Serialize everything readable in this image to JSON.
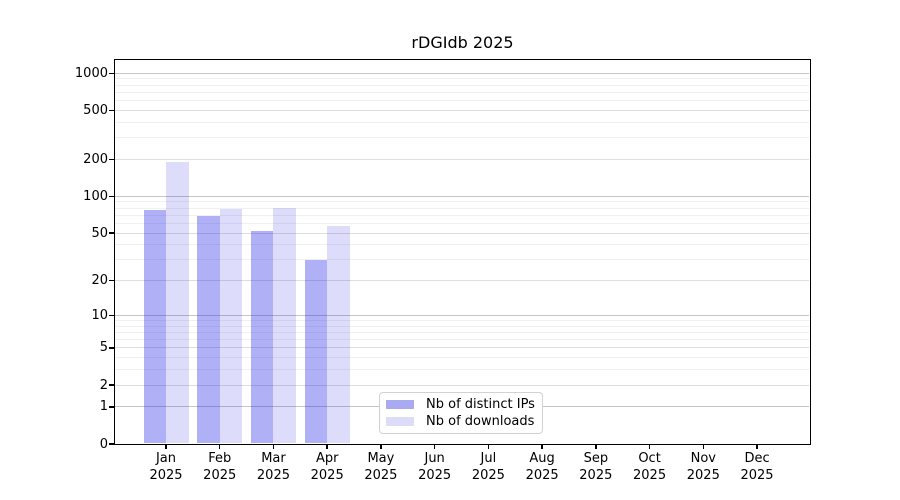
{
  "chart_data": {
    "type": "bar",
    "title": "rDGIdb 2025",
    "categories": [
      "Jan 2025",
      "Feb 2025",
      "Mar 2025",
      "Apr 2025",
      "May 2025",
      "Jun 2025",
      "Jul 2025",
      "Aug 2025",
      "Sep 2025",
      "Oct 2025",
      "Nov 2025",
      "Dec 2025"
    ],
    "series": [
      {
        "name": "Nb of distinct IPs",
        "color": "rgba(30,30,230,0.35)",
        "solid_color": "#aaaaf2",
        "values": [
          76,
          67,
          51,
          29,
          0,
          0,
          0,
          0,
          0,
          0,
          0,
          0
        ]
      },
      {
        "name": "Nb of downloads",
        "color": "rgba(30,30,230,0.15)",
        "solid_color": "#dcdcf9",
        "values": [
          185,
          77,
          79,
          56,
          0,
          0,
          0,
          0,
          0,
          0,
          0,
          0
        ]
      }
    ],
    "xlabel": "",
    "ylabel": "",
    "y_scale": "log10(value+1)",
    "y_ticks": [
      0,
      1,
      2,
      5,
      10,
      20,
      50,
      100,
      200,
      500,
      1000
    ],
    "ylim": [
      0,
      1282
    ],
    "grid": true,
    "legend_position": "bottom-center-left inside plot"
  },
  "style_colors": {
    "major_grid": "#c6c6c6",
    "mid_grid": "#dedede",
    "minor_grid": "#f0f0f0",
    "axis": "#000000"
  }
}
